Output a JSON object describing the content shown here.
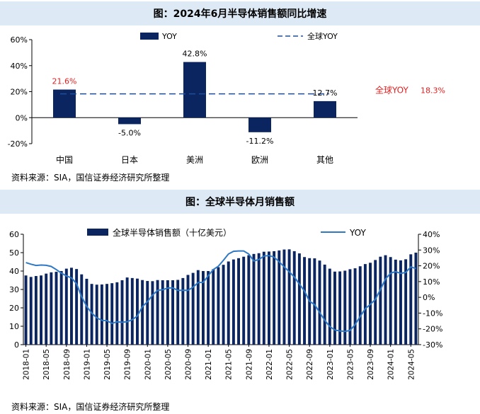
{
  "chart_data": [
    {
      "type": "bar",
      "title": "图：2024年6月半导体销售额同比增速",
      "categories": [
        "中国",
        "日本",
        "美洲",
        "欧洲",
        "其他"
      ],
      "series": [
        {
          "name": "YOY",
          "values": [
            21.6,
            -5.0,
            42.8,
            -11.2,
            12.7
          ]
        }
      ],
      "value_labels": [
        "21.6%",
        "-5.0%",
        "42.8%",
        "-11.2%",
        "12.7%"
      ],
      "yticks": [
        "60%",
        "40%",
        "20%",
        "0%",
        "-20%"
      ],
      "ylim": [
        -20,
        60
      ],
      "reference_line": {
        "name": "全球YOY",
        "value": 18.3,
        "label": "18.3%"
      },
      "legend_position": "top",
      "grid": false,
      "colors": {
        "bar": "#0b2560",
        "line": "#1f4e9a",
        "highlight": "#e02020"
      },
      "source": "资料来源：SIA，国信证券经济研究所整理"
    },
    {
      "type": "bar",
      "title": "图：全球半导体月销售额",
      "x": [
        "2018-01",
        "2018-02",
        "2018-03",
        "2018-04",
        "2018-05",
        "2018-06",
        "2018-07",
        "2018-08",
        "2018-09",
        "2018-10",
        "2018-11",
        "2018-12",
        "2019-01",
        "2019-02",
        "2019-03",
        "2019-04",
        "2019-05",
        "2019-06",
        "2019-07",
        "2019-08",
        "2019-09",
        "2019-10",
        "2019-11",
        "2019-12",
        "2020-01",
        "2020-02",
        "2020-03",
        "2020-04",
        "2020-05",
        "2020-06",
        "2020-07",
        "2020-08",
        "2020-09",
        "2020-10",
        "2020-11",
        "2020-12",
        "2021-01",
        "2021-02",
        "2021-03",
        "2021-04",
        "2021-05",
        "2021-06",
        "2021-07",
        "2021-08",
        "2021-09",
        "2021-10",
        "2021-11",
        "2021-12",
        "2022-01",
        "2022-02",
        "2022-03",
        "2022-04",
        "2022-05",
        "2022-06",
        "2022-07",
        "2022-08",
        "2022-09",
        "2022-10",
        "2022-11",
        "2022-12",
        "2023-01",
        "2023-02",
        "2023-03",
        "2023-04",
        "2023-05",
        "2023-06",
        "2023-07",
        "2023-08",
        "2023-09",
        "2023-10",
        "2023-11",
        "2023-12",
        "2024-01",
        "2024-02",
        "2024-03",
        "2024-04",
        "2024-05",
        "2024-06"
      ],
      "xticks": [
        "2018-01",
        "2018-05",
        "2018-09",
        "2019-01",
        "2019-05",
        "2019-09",
        "2020-01",
        "2020-05",
        "2020-09",
        "2021-01",
        "2021-05",
        "2021-09",
        "2022-01",
        "2022-05",
        "2022-09",
        "2023-01",
        "2023-05",
        "2023-09",
        "2024-01",
        "2024-05"
      ],
      "series": [
        {
          "name": "全球半导体销售额（十亿美元）",
          "axis": "left",
          "values": [
            37.6,
            36.8,
            37.3,
            37.6,
            38.6,
            39.3,
            39.6,
            40.0,
            41.3,
            41.8,
            41.1,
            38.2,
            35.8,
            33.0,
            32.6,
            32.7,
            33.0,
            33.4,
            33.9,
            35.0,
            36.5,
            36.2,
            35.9,
            35.1,
            34.6,
            34.5,
            35.1,
            35.0,
            35.0,
            35.0,
            35.2,
            36.2,
            37.9,
            39.0,
            40.5,
            40.0,
            40.0,
            41.0,
            42.1,
            43.4,
            45.2,
            46.3,
            47.0,
            47.8,
            48.6,
            49.3,
            49.7,
            50.5,
            50.6,
            50.8,
            51.2,
            51.7,
            51.8,
            50.8,
            49.6,
            47.6,
            47.0,
            46.9,
            45.7,
            43.5,
            41.3,
            39.7,
            39.8,
            40.2,
            41.0,
            41.5,
            42.6,
            43.8,
            44.5,
            46.0,
            47.8,
            48.6,
            47.6,
            46.2,
            45.8,
            46.4,
            49.1,
            50.0
          ]
        },
        {
          "name": "YOY",
          "axis": "right",
          "values": [
            22.0,
            21.0,
            20.2,
            20.5,
            20.3,
            19.6,
            17.6,
            15.3,
            13.6,
            12.3,
            8.7,
            0.4,
            -5.7,
            -10.0,
            -13.0,
            -14.6,
            -14.8,
            -16.5,
            -15.5,
            -15.8,
            -15.4,
            -14.2,
            -11.8,
            -5.9,
            -2.7,
            1.4,
            4.4,
            4.8,
            5.9,
            6.0,
            4.4,
            4.5,
            4.4,
            6.5,
            9.4,
            9.5,
            13.7,
            17.6,
            19.7,
            23.5,
            27.5,
            29.2,
            29.4,
            29.4,
            27.5,
            23.1,
            24.0,
            26.2,
            26.5,
            25.5,
            22.6,
            19.3,
            16.2,
            12.9,
            8.4,
            4.0,
            -2.5,
            -4.6,
            -9.6,
            -14.6,
            -18.5,
            -20.7,
            -21.3,
            -21.6,
            -21.0,
            -17.3,
            -12.2,
            -7.2,
            -4.5,
            -1.3,
            4.9,
            11.6,
            15.3,
            16.3,
            15.2,
            15.8,
            19.3,
            18.3
          ]
        }
      ],
      "yticks_left": [
        "0",
        "10",
        "20",
        "30",
        "40",
        "50",
        "60"
      ],
      "yticks_right": [
        "-30%",
        "-20%",
        "-10%",
        "0%",
        "10%",
        "20%",
        "30%",
        "40%"
      ],
      "ylim_left": [
        0,
        60
      ],
      "ylim_right": [
        -30,
        40
      ],
      "legend_position": "top",
      "grid": false,
      "colors": {
        "bar": "#0b2560",
        "line": "#2f79c4"
      },
      "source": "资料来源：SIA，国信证券经济研究所整理"
    }
  ]
}
